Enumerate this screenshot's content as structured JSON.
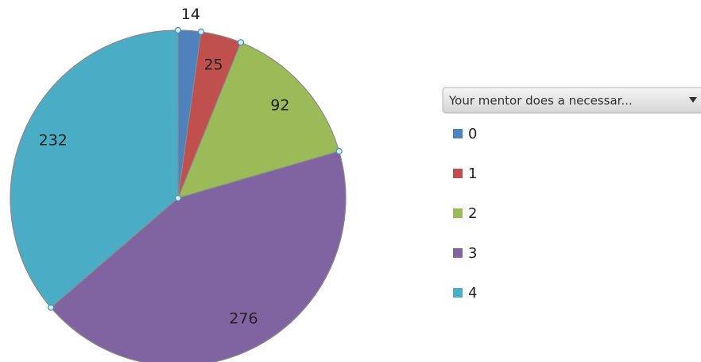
{
  "chart_data": {
    "type": "pie",
    "categories": [
      "0",
      "1",
      "2",
      "3",
      "4"
    ],
    "values": [
      14,
      25,
      92,
      276,
      232
    ],
    "colors": [
      "#4f81bd",
      "#c0504d",
      "#9bbb59",
      "#8064a2",
      "#4bacc6"
    ],
    "legend_title": "Your mentor does a necessar...",
    "legend": "right"
  }
}
